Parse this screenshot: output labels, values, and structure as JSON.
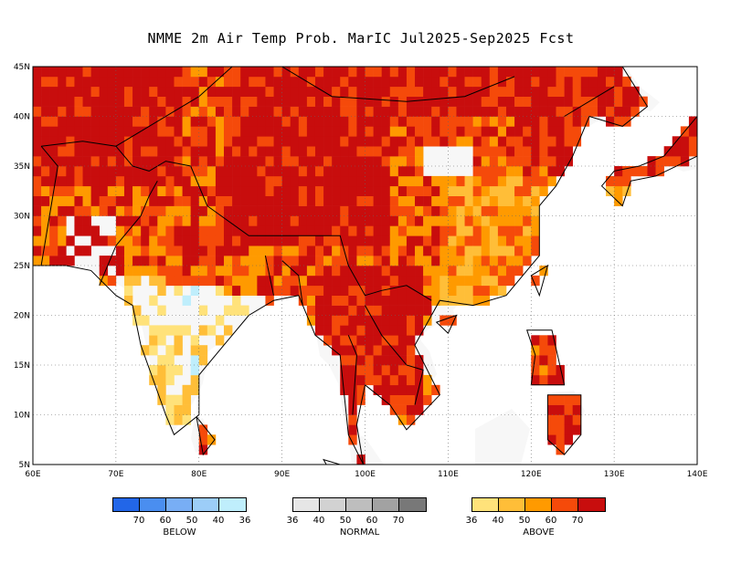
{
  "title": "NMME 2m Air Temp Prob. MarIC  Jul2025-Sep2025 Fcst",
  "map": {
    "lon_range": [
      60,
      140
    ],
    "lat_range": [
      5,
      45
    ],
    "lon_ticks": [
      "60E",
      "70E",
      "80E",
      "90E",
      "100E",
      "110E",
      "120E",
      "130E",
      "140E"
    ],
    "lat_ticks": [
      "45N",
      "40N",
      "35N",
      "30N",
      "25N",
      "20N",
      "15N",
      "10N",
      "5N"
    ],
    "gridlines": "dotted"
  },
  "colors": {
    "below": [
      "#2266e8",
      "#4a8ef0",
      "#78aef5",
      "#9ccdf8",
      "#bfeefc"
    ],
    "normal": [
      "#e6e6e6",
      "#d2d2d2",
      "#bebebe",
      "#a2a2a2",
      "#787878"
    ],
    "above": [
      "#ffe27a",
      "#ffbe38",
      "#ff9a00",
      "#f54a0a",
      "#c80d0d"
    ]
  },
  "legend": {
    "below": {
      "label": "BELOW",
      "ticks": [
        "70",
        "60",
        "50",
        "40",
        "36"
      ]
    },
    "normal": {
      "label": "NORMAL",
      "ticks": [
        "36",
        "40",
        "50",
        "60",
        "70"
      ]
    },
    "above": {
      "label": "ABOVE",
      "ticks": [
        "36",
        "40",
        "50",
        "60",
        "70"
      ]
    }
  }
}
